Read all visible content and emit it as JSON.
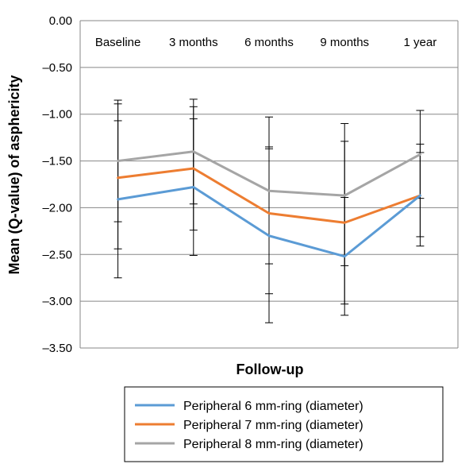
{
  "chart_data": {
    "type": "line",
    "xlabel": "Follow-up",
    "ylabel": "Mean (Q-value) of asphericity",
    "categories": [
      "Baseline",
      "3 months",
      "6 months",
      "9 months",
      "1 year"
    ],
    "y_ticks": [
      "0.00",
      "–0.50",
      "–1.00",
      "–1.50",
      "–2.00",
      "–2.50",
      "–3.00",
      "–3.50"
    ],
    "y_tick_values": [
      0,
      -0.5,
      -1.0,
      -1.5,
      -2.0,
      -2.5,
      -3.0,
      -3.5
    ],
    "ylim": [
      -3.5,
      0
    ],
    "grid": "horizontal",
    "legend_position": "bottom",
    "category_labels_position": "top",
    "series": [
      {
        "name": "Peripheral 6 mm-ring (diameter)",
        "color": "#5b9bd5",
        "values": [
          -1.91,
          -1.78,
          -2.3,
          -2.52,
          -1.87
        ],
        "error_low": [
          -2.75,
          -2.51,
          -3.23,
          -3.15,
          -2.41
        ],
        "error_high": [
          -1.07,
          -1.05,
          -1.37,
          -1.89,
          -1.32
        ]
      },
      {
        "name": "Peripheral 7 mm-ring (diameter)",
        "color": "#ed7d31",
        "values": [
          -1.68,
          -1.58,
          -2.06,
          -2.16,
          -1.87
        ],
        "error_low": [
          -2.44,
          -2.24,
          -2.92,
          -3.03,
          -2.31
        ],
        "error_high": [
          -0.89,
          -0.92,
          -1.35,
          -1.29,
          -1.41
        ]
      },
      {
        "name": "Peripheral 8 mm-ring (diameter)",
        "color": "#a5a5a5",
        "values": [
          -1.5,
          -1.4,
          -1.82,
          -1.87,
          -1.43
        ],
        "error_low": [
          -2.15,
          -1.96,
          -2.6,
          -2.62,
          -1.9
        ],
        "error_high": [
          -0.85,
          -0.84,
          -1.03,
          -1.1,
          -0.96
        ]
      }
    ]
  }
}
